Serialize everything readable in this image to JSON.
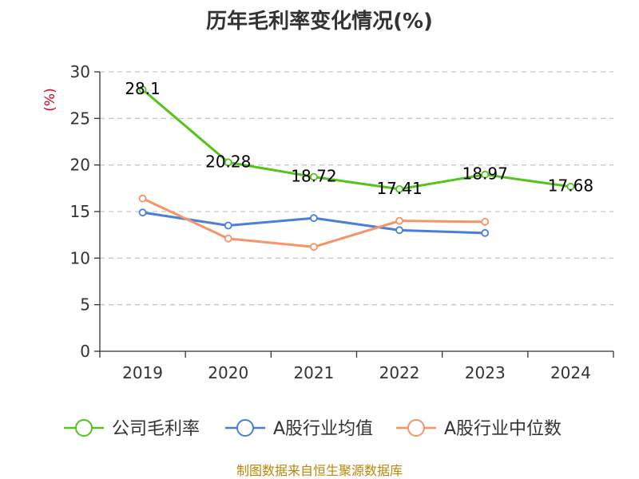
{
  "chart_data": {
    "type": "line",
    "title": "历年毛利率变化情况(%)",
    "y_unit": "(%)",
    "categories": [
      "2019",
      "2020",
      "2021",
      "2022",
      "2023",
      "2024"
    ],
    "ylim": [
      0,
      30
    ],
    "yticks": [
      "0",
      "5",
      "10",
      "15",
      "20",
      "25",
      "30"
    ],
    "grid": true,
    "legend_position": "bottom",
    "series": [
      {
        "name": "公司毛利率",
        "color": "#52c41a",
        "values": [
          28.1,
          20.28,
          18.72,
          17.41,
          18.97,
          17.68
        ],
        "labels": [
          "28.1",
          "20.28",
          "18.72",
          "17.41",
          "18.97",
          "17.68"
        ]
      },
      {
        "name": "A股行业均值",
        "color": "#4a7fd9",
        "values": [
          14.9,
          13.5,
          14.3,
          13.0,
          12.7,
          null
        ]
      },
      {
        "name": "A股行业中位数",
        "color": "#f59466",
        "values": [
          16.4,
          12.1,
          11.2,
          14.0,
          13.9,
          null
        ]
      }
    ]
  },
  "source": "制图数据来自恒生聚源数据库"
}
